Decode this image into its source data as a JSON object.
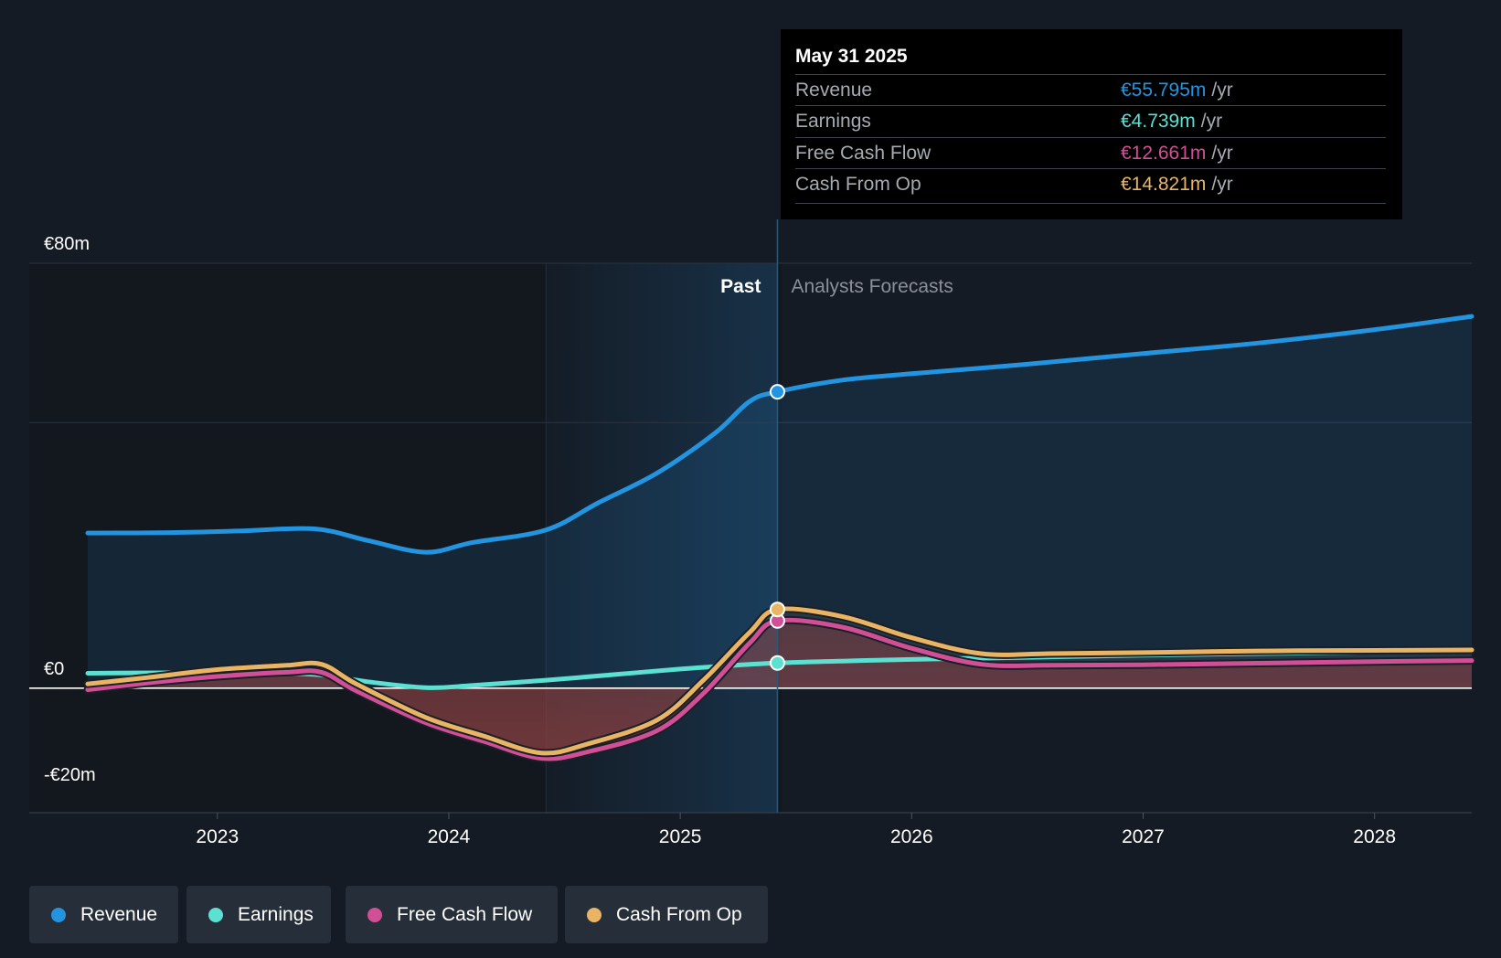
{
  "chart_data": {
    "type": "line",
    "currency": "€",
    "unit": "m",
    "x_range": [
      2022.44,
      2028.42
    ],
    "ylim": [
      -20,
      80
    ],
    "y_tick_labels": [
      {
        "value": 80,
        "label": "€80m"
      },
      {
        "value": 0,
        "label": "€0"
      },
      {
        "value": -20,
        "label": "-€20m"
      }
    ],
    "gridline_values": [
      80,
      50
    ],
    "x_tick_labels": [
      {
        "value": 2023,
        "label": "2023"
      },
      {
        "value": 2024,
        "label": "2024"
      },
      {
        "value": 2025,
        "label": "2025"
      },
      {
        "value": 2026,
        "label": "2026"
      },
      {
        "value": 2027,
        "label": "2027"
      },
      {
        "value": 2028,
        "label": "2028"
      }
    ],
    "past_label": "Past",
    "forecast_label": "Analysts Forecasts",
    "highlight_start": 2024.42,
    "divider_x": 2025.42,
    "series": [
      {
        "name": "Revenue",
        "color": "#2394df",
        "area": true,
        "points": [
          [
            2022.44,
            29.2
          ],
          [
            2022.8,
            29.3
          ],
          [
            2023.1,
            29.6
          ],
          [
            2023.42,
            30.0
          ],
          [
            2023.65,
            27.8
          ],
          [
            2023.9,
            25.6
          ],
          [
            2024.1,
            27.4
          ],
          [
            2024.42,
            29.8
          ],
          [
            2024.65,
            35.0
          ],
          [
            2024.9,
            40.5
          ],
          [
            2025.15,
            48.0
          ],
          [
            2025.3,
            54.0
          ],
          [
            2025.42,
            55.8
          ],
          [
            2025.7,
            58.0
          ],
          [
            2026.0,
            59.2
          ],
          [
            2026.5,
            61.0
          ],
          [
            2027.0,
            63.0
          ],
          [
            2027.5,
            65.0
          ],
          [
            2028.0,
            67.5
          ],
          [
            2028.42,
            70.0
          ]
        ]
      },
      {
        "name": "Earnings",
        "color": "#5ce0d2",
        "area": false,
        "points": [
          [
            2022.44,
            2.8
          ],
          [
            2022.8,
            2.9
          ],
          [
            2023.1,
            2.8
          ],
          [
            2023.42,
            2.6
          ],
          [
            2023.65,
            1.2
          ],
          [
            2023.9,
            0.1
          ],
          [
            2024.1,
            0.5
          ],
          [
            2024.42,
            1.5
          ],
          [
            2024.7,
            2.5
          ],
          [
            2025.0,
            3.6
          ],
          [
            2025.2,
            4.2
          ],
          [
            2025.42,
            4.739
          ],
          [
            2025.7,
            5.1
          ],
          [
            2026.0,
            5.4
          ],
          [
            2026.5,
            5.8
          ],
          [
            2027.0,
            6.2
          ],
          [
            2027.5,
            6.5
          ],
          [
            2028.0,
            6.8
          ],
          [
            2028.42,
            7.0
          ]
        ]
      },
      {
        "name": "Free Cash Flow",
        "color": "#d14f96",
        "area": true,
        "points": [
          [
            2022.44,
            -0.3
          ],
          [
            2022.7,
            1.0
          ],
          [
            2023.0,
            2.2
          ],
          [
            2023.3,
            3.0
          ],
          [
            2023.45,
            3.0
          ],
          [
            2023.6,
            -0.5
          ],
          [
            2023.9,
            -6.5
          ],
          [
            2024.15,
            -10.0
          ],
          [
            2024.4,
            -13.2
          ],
          [
            2024.6,
            -12.0
          ],
          [
            2024.9,
            -8.0
          ],
          [
            2025.1,
            -1.0
          ],
          [
            2025.3,
            8.5
          ],
          [
            2025.42,
            12.661
          ],
          [
            2025.7,
            11.5
          ],
          [
            2026.0,
            7.5
          ],
          [
            2026.3,
            4.5
          ],
          [
            2026.6,
            4.3
          ],
          [
            2027.0,
            4.4
          ],
          [
            2027.5,
            4.7
          ],
          [
            2028.0,
            5.0
          ],
          [
            2028.42,
            5.2
          ]
        ]
      },
      {
        "name": "Cash From Op",
        "color": "#e9b565",
        "area": true,
        "points": [
          [
            2022.44,
            0.8
          ],
          [
            2022.7,
            2.0
          ],
          [
            2023.0,
            3.5
          ],
          [
            2023.3,
            4.3
          ],
          [
            2023.45,
            4.5
          ],
          [
            2023.6,
            0.8
          ],
          [
            2023.9,
            -5.5
          ],
          [
            2024.15,
            -9.0
          ],
          [
            2024.4,
            -12.2
          ],
          [
            2024.6,
            -10.5
          ],
          [
            2024.9,
            -6.0
          ],
          [
            2025.1,
            1.5
          ],
          [
            2025.3,
            10.5
          ],
          [
            2025.42,
            14.821
          ],
          [
            2025.7,
            13.5
          ],
          [
            2026.0,
            9.5
          ],
          [
            2026.3,
            6.5
          ],
          [
            2026.6,
            6.5
          ],
          [
            2027.0,
            6.7
          ],
          [
            2027.5,
            7.0
          ],
          [
            2028.0,
            7.1
          ],
          [
            2028.42,
            7.2
          ]
        ]
      }
    ]
  },
  "tooltip": {
    "date": "May 31 2025",
    "rows": [
      {
        "label": "Revenue",
        "value": "€55.795m",
        "unit": "/yr",
        "color": "#2394df"
      },
      {
        "label": "Earnings",
        "value": "€4.739m",
        "unit": "/yr",
        "color": "#5ce0d2"
      },
      {
        "label": "Free Cash Flow",
        "value": "€12.661m",
        "unit": "/yr",
        "color": "#d14f96"
      },
      {
        "label": "Cash From Op",
        "value": "€14.821m",
        "unit": "/yr",
        "color": "#e9b565"
      }
    ]
  },
  "legend": [
    {
      "label": "Revenue",
      "color": "#2394df"
    },
    {
      "label": "Earnings",
      "color": "#5ce0d2"
    },
    {
      "label": "Free Cash Flow",
      "color": "#d14f96"
    },
    {
      "label": "Cash From Op",
      "color": "#e9b565"
    }
  ]
}
